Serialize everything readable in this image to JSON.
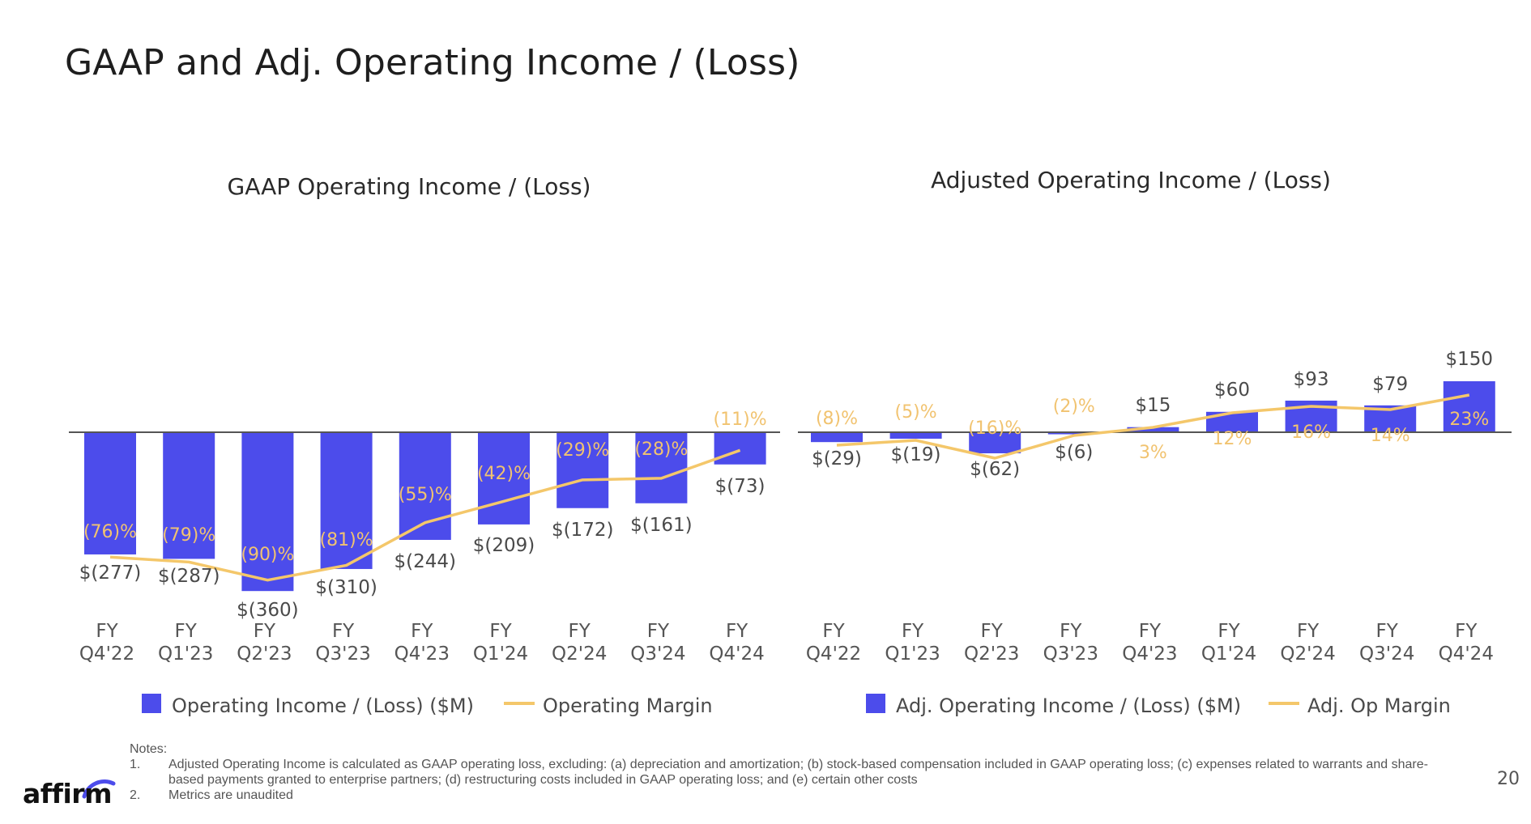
{
  "page": {
    "title": "GAAP and Adj. Operating Income / (Loss)",
    "page_number": "20",
    "logo_text": "affirm"
  },
  "colors": {
    "bar": "#4C4CEB",
    "line": "#F4C76A",
    "pct_label": "#F1C370",
    "axis": "#555555",
    "logo_arc": "#4C4CEB"
  },
  "notes": {
    "heading": "Notes:",
    "items": [
      {
        "num": "1.",
        "text": "Adjusted Operating Income is calculated as GAAP operating loss, excluding: (a) depreciation and amortization; (b) stock-based compensation included in GAAP operating loss; (c) expenses related to warrants and share-based payments granted to enterprise partners; (d) restructuring costs included in GAAP operating loss;  and (e) certain other costs"
      },
      {
        "num": "2.",
        "text": "Metrics are unaudited"
      }
    ]
  },
  "chart_data": [
    {
      "type": "bar",
      "title": "GAAP Operating Income / (Loss)",
      "categories": [
        [
          "FY",
          "Q4'22"
        ],
        [
          "FY",
          "Q1'23"
        ],
        [
          "FY",
          "Q2'23"
        ],
        [
          "FY",
          "Q3'23"
        ],
        [
          "FY",
          "Q4'23"
        ],
        [
          "FY",
          "Q1'24"
        ],
        [
          "FY",
          "Q2'24"
        ],
        [
          "FY",
          "Q3'24"
        ],
        [
          "FY",
          "Q4'24"
        ]
      ],
      "series": [
        {
          "name": "Operating Income / (Loss) ($M)",
          "kind": "bar",
          "values": [
            -277,
            -287,
            -360,
            -310,
            -244,
            -209,
            -172,
            -161,
            -73
          ],
          "labels": [
            "$(277)",
            "$(287)",
            "$(360)",
            "$(310)",
            "$(244)",
            "$(209)",
            "$(172)",
            "$(161)",
            "$(73)"
          ]
        },
        {
          "name": "Operating Margin",
          "kind": "line",
          "values": [
            -76,
            -79,
            -90,
            -81,
            -55,
            -42,
            -29,
            -28,
            -11
          ],
          "labels": [
            "(76)%",
            "(79)%",
            "(90)%",
            "(81)%",
            "(55)%",
            "(42)%",
            "(29)%",
            "(28)%",
            "(11)%"
          ]
        }
      ],
      "legend": [
        "Operating Income / (Loss) ($M)",
        "Operating Margin"
      ],
      "legend_position": "bottom"
    },
    {
      "type": "bar",
      "title": "Adjusted Operating Income / (Loss)",
      "categories": [
        [
          "FY",
          "Q4'22"
        ],
        [
          "FY",
          "Q1'23"
        ],
        [
          "FY",
          "Q2'23"
        ],
        [
          "FY",
          "Q3'23"
        ],
        [
          "FY",
          "Q4'23"
        ],
        [
          "FY",
          "Q1'24"
        ],
        [
          "FY",
          "Q2'24"
        ],
        [
          "FY",
          "Q3'24"
        ],
        [
          "FY",
          "Q4'24"
        ]
      ],
      "series": [
        {
          "name": "Adj. Operating Income / (Loss) ($M)",
          "kind": "bar",
          "values": [
            -29,
            -19,
            -62,
            -6,
            15,
            60,
            93,
            79,
            150
          ],
          "labels": [
            "$(29)",
            "$(19)",
            "$(62)",
            "$(6)",
            "$15",
            "$60",
            "$93",
            "$79",
            "$150"
          ]
        },
        {
          "name": "Adj. Op Margin",
          "kind": "line",
          "values": [
            -8,
            -5,
            -16,
            -2,
            3,
            12,
            16,
            14,
            23
          ],
          "labels": [
            "(8)%",
            "(5)%",
            "(16)%",
            "(2)%",
            "3%",
            "12%",
            "16%",
            "14%",
            "23%"
          ]
        }
      ],
      "legend": [
        "Adj. Operating Income / (Loss) ($M)",
        "Adj. Op Margin"
      ],
      "legend_position": "bottom"
    }
  ]
}
